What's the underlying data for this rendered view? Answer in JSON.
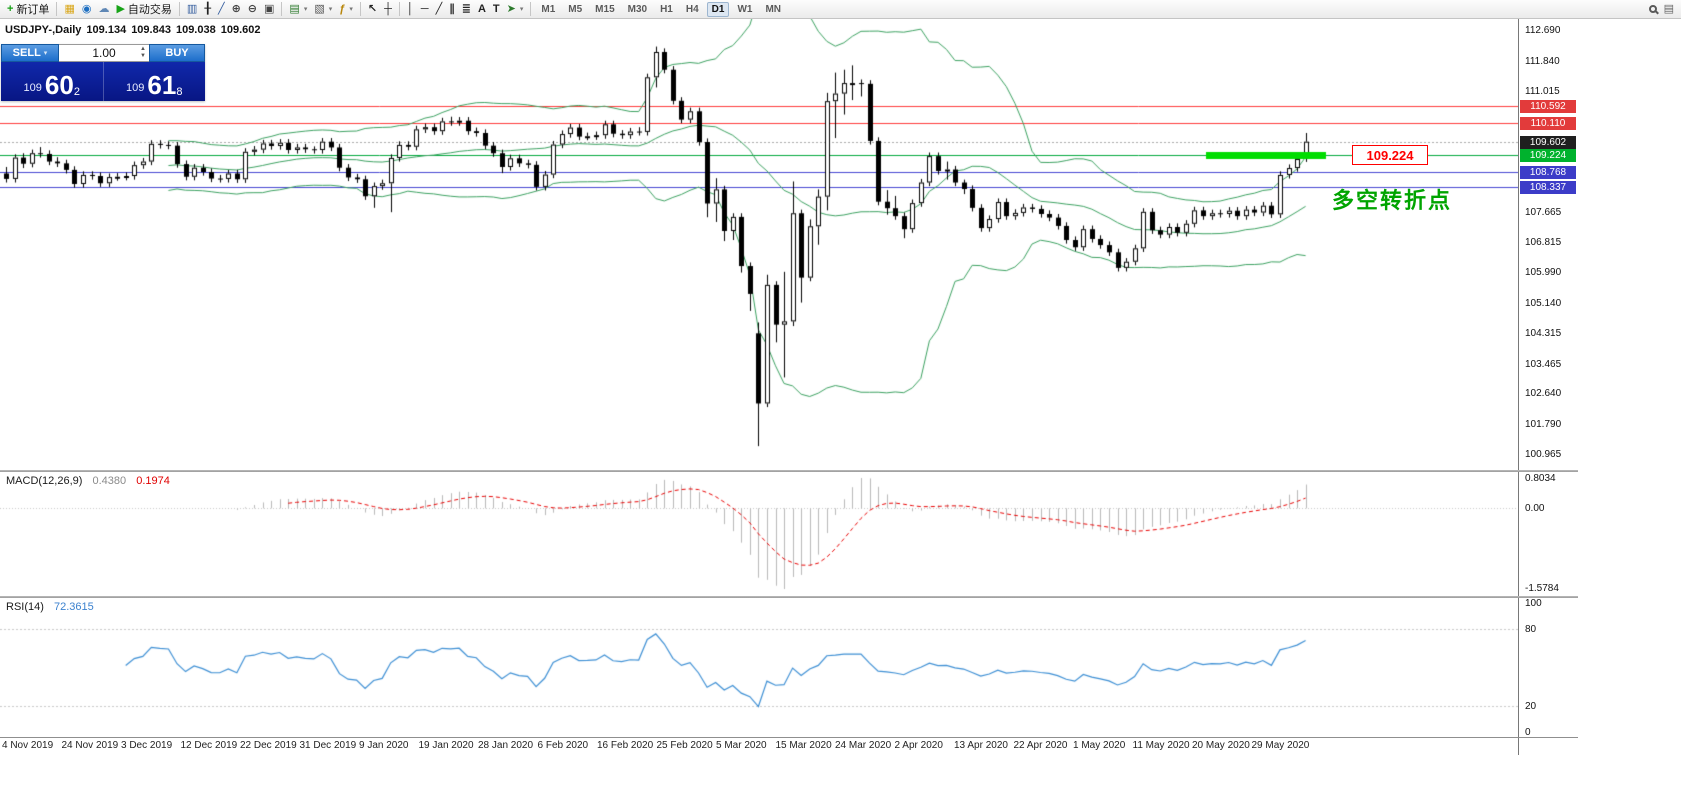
{
  "toolbar": {
    "items": [
      {
        "kind": "btn",
        "name": "new-order-button",
        "glyph": "+",
        "glyph_color": "#14a014",
        "label": "新订单"
      },
      {
        "kind": "sep"
      },
      {
        "kind": "btn",
        "name": "market-icon",
        "glyph": "▦",
        "glyph_color": "#d9a515"
      },
      {
        "kind": "btn",
        "name": "signals-icon",
        "glyph": "◉",
        "glyph_color": "#1d6fc2"
      },
      {
        "kind": "btn",
        "name": "vps-icon",
        "glyph": "☁",
        "glyph_color": "#5f87b5"
      },
      {
        "kind": "btn",
        "name": "autotrade-button",
        "glyph": "▶",
        "glyph_color": "#17a317",
        "label": "自动交易"
      },
      {
        "kind": "sep"
      },
      {
        "kind": "btn",
        "name": "bar-chart-button",
        "glyph": "▥",
        "glyph_color": "#345d9e"
      },
      {
        "kind": "btn",
        "name": "candlestick-button",
        "glyph": "╂",
        "glyph_color": "#222222"
      },
      {
        "kind": "btn",
        "name": "line-chart-button",
        "glyph": "╱",
        "glyph_color": "#345d9e"
      },
      {
        "kind": "btn",
        "name": "zoom-in-button",
        "glyph": "⊕",
        "glyph_color": "#444444"
      },
      {
        "kind": "btn",
        "name": "zoom-out-button",
        "glyph": "⊖",
        "glyph_color": "#444444"
      },
      {
        "kind": "btn",
        "name": "tile-windows-button",
        "glyph": "▣",
        "glyph_color": "#444444"
      },
      {
        "kind": "sep"
      },
      {
        "kind": "btn",
        "name": "new-chart-button",
        "glyph": "▤",
        "glyph_color": "#2c7a2c",
        "dropdown": true
      },
      {
        "kind": "btn",
        "name": "profiles-button",
        "glyph": "▧",
        "glyph_color": "#555555",
        "dropdown": true
      },
      {
        "kind": "btn",
        "name": "indicators-button",
        "glyph": "ƒ",
        "glyph_color": "#b8860b",
        "dropdown": true
      },
      {
        "kind": "sep"
      },
      {
        "kind": "btn",
        "name": "cursor-button",
        "glyph": "↖",
        "glyph_color": "#222222"
      },
      {
        "kind": "btn",
        "name": "crosshair-button",
        "glyph": "┼",
        "glyph_color": "#222222"
      },
      {
        "kind": "sep"
      },
      {
        "kind": "btn",
        "name": "vertical-line-button",
        "glyph": "│",
        "glyph_color": "#222222"
      },
      {
        "kind": "btn",
        "name": "horizontal-line-button",
        "glyph": "─",
        "glyph_color": "#222222"
      },
      {
        "kind": "btn",
        "name": "trendline-button",
        "glyph": "╱",
        "glyph_color": "#222222"
      },
      {
        "kind": "btn",
        "name": "channel-button",
        "glyph": "∥",
        "glyph_color": "#222222"
      },
      {
        "kind": "btn",
        "name": "fibonacci-button",
        "glyph": "≣",
        "glyph_color": "#222222"
      },
      {
        "kind": "btn",
        "name": "text-button",
        "glyph": "A",
        "glyph_color": "#222222"
      },
      {
        "kind": "btn",
        "name": "text-label-button",
        "glyph": "T",
        "glyph_color": "#222222"
      },
      {
        "kind": "btn",
        "name": "arrows-button",
        "glyph": "➤",
        "glyph_color": "#2c7a2c",
        "dropdown": true
      },
      {
        "kind": "sep"
      },
      {
        "kind": "tf",
        "label": "M1"
      },
      {
        "kind": "tf",
        "label": "M5"
      },
      {
        "kind": "tf",
        "label": "M15"
      },
      {
        "kind": "tf",
        "label": "M30"
      },
      {
        "kind": "tf",
        "label": "H1"
      },
      {
        "kind": "tf",
        "label": "H4"
      },
      {
        "kind": "tf",
        "label": "D1",
        "active": true
      },
      {
        "kind": "tf",
        "label": "W1"
      },
      {
        "kind": "tf",
        "label": "MN"
      },
      {
        "kind": "spacer"
      },
      {
        "kind": "btn",
        "name": "search-icon",
        "icon": "lens"
      },
      {
        "kind": "btn",
        "name": "quick-panel-icon",
        "glyph": "▤",
        "glyph_color": "#666666"
      }
    ]
  },
  "header": {
    "symbol": "USDJPY-,Daily",
    "open": "109.134",
    "high": "109.843",
    "low": "109.038",
    "close": "109.602"
  },
  "trade_panel": {
    "sell_label": "SELL",
    "buy_label": "BUY",
    "volume": "1.00",
    "bid_prefix": "109",
    "bid_big": "60",
    "bid_sup": "2",
    "ask_prefix": "109",
    "ask_big": "61",
    "ask_sup": "8"
  },
  "annotations": {
    "callout": "109.224",
    "turning_point": "多空转折点"
  },
  "chart_data": {
    "type": "candlestick",
    "symbol": "USDJPY-",
    "timeframe": "Daily",
    "price_axis_ticks": [
      112.69,
      111.84,
      111.015,
      107.665,
      106.815,
      105.99,
      105.14,
      104.315,
      103.465,
      102.64,
      101.79,
      100.965
    ],
    "price_tags": [
      {
        "label": "110.592",
        "price": 110.592,
        "bg": "#e23b3b"
      },
      {
        "label": "110.110",
        "price": 110.11,
        "bg": "#e23b3b"
      },
      {
        "label": "109.602",
        "price": 109.602,
        "bg": "#1f1f1f"
      },
      {
        "label": "109.224",
        "price": 109.224,
        "bg": "#00b22d"
      },
      {
        "label": "108.768",
        "price": 108.768,
        "bg": "#3c3cc8"
      },
      {
        "label": "108.337",
        "price": 108.337,
        "bg": "#3c3cc8"
      }
    ],
    "hlines": [
      {
        "price": 110.592,
        "color": "#ff3b3b"
      },
      {
        "price": 110.11,
        "color": "#ff3b3b"
      },
      {
        "price": 109.224,
        "color": "#00a83c"
      },
      {
        "price": 108.768,
        "color": "#4646d2"
      },
      {
        "price": 108.337,
        "color": "#4646d2"
      }
    ],
    "bid_line": {
      "price": 109.602,
      "color": "#a8a8a8"
    },
    "highlight": {
      "price": 109.224,
      "color": "#00dd00",
      "label": "109.224"
    },
    "bollinger": {
      "period": 20,
      "deviation": 2,
      "color": "#3aa05f"
    },
    "macd": {
      "label": "MACD(12,26,9)",
      "main_value": "0.4380",
      "signal_value": "0.1974",
      "axis_labels": [
        "0.8034",
        "0.00",
        "-1.5784"
      ],
      "histogram_color": "#b8b8b8",
      "signal_color": "#e80000"
    },
    "rsi": {
      "label": "RSI(14)",
      "value": "72.3615",
      "axis_labels": [
        "100",
        "80",
        "20",
        "0"
      ],
      "levels": [
        80,
        20
      ],
      "color": "#3d8fd4"
    },
    "date_labels": [
      "4 Nov 2019",
      "24 Nov 2019",
      "3 Dec 2019",
      "12 Dec 2019",
      "22 Dec 2019",
      "31 Dec 2019",
      "9 Jan 2020",
      "19 Jan 2020",
      "28 Jan 2020",
      "6 Feb 2020",
      "16 Feb 2020",
      "25 Feb 2020",
      "5 Mar 2020",
      "15 Mar 2020",
      "24 Mar 2020",
      "2 Apr 2020",
      "13 Apr 2020",
      "22 Apr 2020",
      "1 May 2020",
      "11 May 2020",
      "20 May 2020",
      "29 May 2020"
    ],
    "candles": [
      [
        108.72,
        108.9,
        108.47,
        108.57
      ],
      [
        108.57,
        109.25,
        108.47,
        109.16
      ],
      [
        109.16,
        109.28,
        108.87,
        108.99
      ],
      [
        108.99,
        109.38,
        108.89,
        109.28
      ],
      [
        109.28,
        109.45,
        109.16,
        109.26
      ],
      [
        109.26,
        109.36,
        108.95,
        109.05
      ],
      [
        109.05,
        109.17,
        108.9,
        109.0
      ],
      [
        109.0,
        109.1,
        108.72,
        108.82
      ],
      [
        108.82,
        108.92,
        108.33,
        108.43
      ],
      [
        108.43,
        108.78,
        108.33,
        108.68
      ],
      [
        108.68,
        108.78,
        108.55,
        108.65
      ],
      [
        108.65,
        108.75,
        108.35,
        108.45
      ],
      [
        108.45,
        108.72,
        108.35,
        108.62
      ],
      [
        108.62,
        108.73,
        108.52,
        108.63
      ],
      [
        108.63,
        108.75,
        108.53,
        108.65
      ],
      [
        108.65,
        109.05,
        108.55,
        108.95
      ],
      [
        108.95,
        109.15,
        108.85,
        109.05
      ],
      [
        109.05,
        109.64,
        108.95,
        109.54
      ],
      [
        109.54,
        109.64,
        109.41,
        109.51
      ],
      [
        109.51,
        109.61,
        109.39,
        109.49
      ],
      [
        109.49,
        109.59,
        108.88,
        108.98
      ],
      [
        108.98,
        109.08,
        108.53,
        108.63
      ],
      [
        108.63,
        108.98,
        108.53,
        108.88
      ],
      [
        108.88,
        108.98,
        108.66,
        108.76
      ],
      [
        108.76,
        108.86,
        108.48,
        108.58
      ],
      [
        108.58,
        108.68,
        108.47,
        108.57
      ],
      [
        108.57,
        108.82,
        108.47,
        108.72
      ],
      [
        108.72,
        108.82,
        108.46,
        108.56
      ],
      [
        108.56,
        109.42,
        108.46,
        109.32
      ],
      [
        109.32,
        109.48,
        109.22,
        109.38
      ],
      [
        109.38,
        109.65,
        109.28,
        109.55
      ],
      [
        109.55,
        109.65,
        109.38,
        109.48
      ],
      [
        109.48,
        109.67,
        109.38,
        109.57
      ],
      [
        109.57,
        109.67,
        109.27,
        109.37
      ],
      [
        109.37,
        109.54,
        109.27,
        109.44
      ],
      [
        109.44,
        109.54,
        109.29,
        109.39
      ],
      [
        109.39,
        109.47,
        109.27,
        109.37
      ],
      [
        109.37,
        109.7,
        109.27,
        109.6
      ],
      [
        109.6,
        109.7,
        109.34,
        109.44
      ],
      [
        109.44,
        109.54,
        108.78,
        108.88
      ],
      [
        108.88,
        108.98,
        108.51,
        108.61
      ],
      [
        108.61,
        108.71,
        108.46,
        108.56
      ],
      [
        108.56,
        108.66,
        107.99,
        108.09
      ],
      [
        108.09,
        108.47,
        107.77,
        108.37
      ],
      [
        108.37,
        108.55,
        108.27,
        108.45
      ],
      [
        108.45,
        109.25,
        107.65,
        109.15
      ],
      [
        109.15,
        109.61,
        109.05,
        109.51
      ],
      [
        109.51,
        109.61,
        109.36,
        109.46
      ],
      [
        109.46,
        110.04,
        109.36,
        109.94
      ],
      [
        109.94,
        110.1,
        109.84,
        110.0
      ],
      [
        110.0,
        110.1,
        109.79,
        109.89
      ],
      [
        109.89,
        110.26,
        109.79,
        110.16
      ],
      [
        110.16,
        110.29,
        110.04,
        110.14
      ],
      [
        110.14,
        110.28,
        110.04,
        110.18
      ],
      [
        110.18,
        110.28,
        109.79,
        109.89
      ],
      [
        109.89,
        109.99,
        109.74,
        109.84
      ],
      [
        109.84,
        109.94,
        109.39,
        109.49
      ],
      [
        109.49,
        109.59,
        109.18,
        109.28
      ],
      [
        109.28,
        109.38,
        108.73,
        108.9
      ],
      [
        108.9,
        109.24,
        108.8,
        109.14
      ],
      [
        109.14,
        109.24,
        108.9,
        109.0
      ],
      [
        109.0,
        109.1,
        108.86,
        108.96
      ],
      [
        108.96,
        109.06,
        108.25,
        108.35
      ],
      [
        108.35,
        108.79,
        108.25,
        108.69
      ],
      [
        108.69,
        109.62,
        108.59,
        109.52
      ],
      [
        109.52,
        109.91,
        109.42,
        109.81
      ],
      [
        109.81,
        110.09,
        109.71,
        109.99
      ],
      [
        109.99,
        110.09,
        109.64,
        109.74
      ],
      [
        109.74,
        109.85,
        109.64,
        109.75
      ],
      [
        109.75,
        109.88,
        109.65,
        109.78
      ],
      [
        109.78,
        110.18,
        109.68,
        110.08
      ],
      [
        110.08,
        110.18,
        109.72,
        109.82
      ],
      [
        109.82,
        109.92,
        109.68,
        109.78
      ],
      [
        109.78,
        109.98,
        109.68,
        109.88
      ],
      [
        109.88,
        110.0,
        109.77,
        109.87
      ],
      [
        109.87,
        111.48,
        109.77,
        111.38
      ],
      [
        111.38,
        112.23,
        111.1,
        112.08
      ],
      [
        112.08,
        112.18,
        111.49,
        111.59
      ],
      [
        111.59,
        111.69,
        110.63,
        110.73
      ],
      [
        110.73,
        110.83,
        110.11,
        110.21
      ],
      [
        110.21,
        110.54,
        110.11,
        110.44
      ],
      [
        110.44,
        110.54,
        109.49,
        109.59
      ],
      [
        109.59,
        109.69,
        107.51,
        107.89
      ],
      [
        107.89,
        108.59,
        107.38,
        108.28
      ],
      [
        108.28,
        108.38,
        106.85,
        107.13
      ],
      [
        107.13,
        107.62,
        106.88,
        107.52
      ],
      [
        107.52,
        107.62,
        105.98,
        106.16
      ],
      [
        106.16,
        106.26,
        104.92,
        105.39
      ],
      [
        104.3,
        104.6,
        101.18,
        102.36
      ],
      [
        102.36,
        105.92,
        102.26,
        105.64
      ],
      [
        105.64,
        105.74,
        104.05,
        104.54
      ],
      [
        104.54,
        106.0,
        103.08,
        104.63
      ],
      [
        104.63,
        108.5,
        104.5,
        107.62
      ],
      [
        107.62,
        107.72,
        105.15,
        105.84
      ],
      [
        105.84,
        107.45,
        105.74,
        107.26
      ],
      [
        107.26,
        108.28,
        106.75,
        108.08
      ],
      [
        108.08,
        110.95,
        107.7,
        110.72
      ],
      [
        110.72,
        111.51,
        109.7,
        110.93
      ],
      [
        110.93,
        111.59,
        110.35,
        111.22
      ],
      [
        111.22,
        111.71,
        110.75,
        111.22
      ],
      [
        111.22,
        111.32,
        110.85,
        111.2
      ],
      [
        111.2,
        111.3,
        109.52,
        109.62
      ],
      [
        109.62,
        109.72,
        107.84,
        107.94
      ],
      [
        107.94,
        108.26,
        107.58,
        107.76
      ],
      [
        107.76,
        108.1,
        107.44,
        107.54
      ],
      [
        107.54,
        107.64,
        106.93,
        107.18
      ],
      [
        107.18,
        108.0,
        107.08,
        107.9
      ],
      [
        107.9,
        108.57,
        107.8,
        108.47
      ],
      [
        108.47,
        109.3,
        108.37,
        109.2
      ],
      [
        109.2,
        109.3,
        108.69,
        108.79
      ],
      [
        108.79,
        109.05,
        108.55,
        108.83
      ],
      [
        108.83,
        108.93,
        108.37,
        108.47
      ],
      [
        108.47,
        108.55,
        108.15,
        108.29
      ],
      [
        108.29,
        108.39,
        107.67,
        107.77
      ],
      [
        107.77,
        107.87,
        107.11,
        107.21
      ],
      [
        107.21,
        107.56,
        107.11,
        107.46
      ],
      [
        107.46,
        108.03,
        107.36,
        107.93
      ],
      [
        107.93,
        108.03,
        107.44,
        107.54
      ],
      [
        107.54,
        107.73,
        107.44,
        107.63
      ],
      [
        107.63,
        107.88,
        107.53,
        107.78
      ],
      [
        107.78,
        107.88,
        107.64,
        107.74
      ],
      [
        107.74,
        107.84,
        107.5,
        107.6
      ],
      [
        107.6,
        107.7,
        107.4,
        107.5
      ],
      [
        107.5,
        107.6,
        107.17,
        107.27
      ],
      [
        107.27,
        107.37,
        106.78,
        106.88
      ],
      [
        106.88,
        106.98,
        106.58,
        106.68
      ],
      [
        106.68,
        107.28,
        106.58,
        107.18
      ],
      [
        107.18,
        107.28,
        106.81,
        106.91
      ],
      [
        106.91,
        107.01,
        106.64,
        106.74
      ],
      [
        106.74,
        106.84,
        106.44,
        106.54
      ],
      [
        106.54,
        106.64,
        106.01,
        106.11
      ],
      [
        106.11,
        106.38,
        106.01,
        106.28
      ],
      [
        106.28,
        106.75,
        106.18,
        106.65
      ],
      [
        106.65,
        107.76,
        106.55,
        107.66
      ],
      [
        107.66,
        107.76,
        107.05,
        107.15
      ],
      [
        107.15,
        107.25,
        106.93,
        107.03
      ],
      [
        107.03,
        107.34,
        106.93,
        107.24
      ],
      [
        107.24,
        107.34,
        106.98,
        107.08
      ],
      [
        107.08,
        107.43,
        106.98,
        107.33
      ],
      [
        107.33,
        107.8,
        107.23,
        107.7
      ],
      [
        107.7,
        107.8,
        107.44,
        107.54
      ],
      [
        107.54,
        107.72,
        107.44,
        107.62
      ],
      [
        107.62,
        107.72,
        107.5,
        107.6
      ],
      [
        107.6,
        107.79,
        107.5,
        107.69
      ],
      [
        107.69,
        107.79,
        107.44,
        107.54
      ],
      [
        107.54,
        107.82,
        107.44,
        107.72
      ],
      [
        107.72,
        107.82,
        107.54,
        107.64
      ],
      [
        107.64,
        107.93,
        107.54,
        107.83
      ],
      [
        107.83,
        107.93,
        107.49,
        107.59
      ],
      [
        107.59,
        108.78,
        107.49,
        108.68
      ],
      [
        108.68,
        108.97,
        108.58,
        108.87
      ],
      [
        108.87,
        109.22,
        108.77,
        109.12
      ],
      [
        109.13,
        109.84,
        109.04,
        109.6
      ]
    ]
  }
}
